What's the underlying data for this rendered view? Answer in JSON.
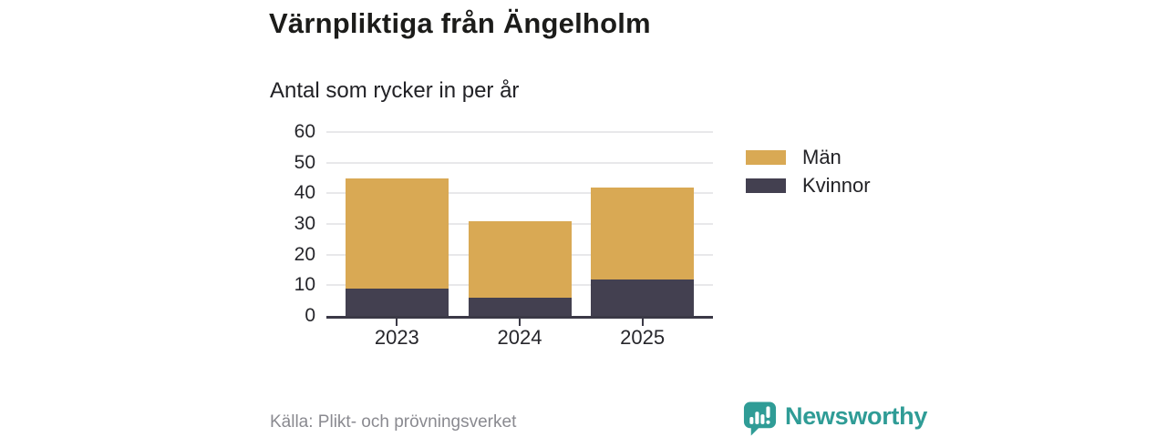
{
  "header": {
    "title": "Värnpliktiga från Ängelholm",
    "subtitle": "Antal som rycker in per år"
  },
  "chart_data": {
    "type": "bar",
    "stacked": true,
    "title": "Värnpliktiga från Ängelholm",
    "subtitle": "Antal som rycker in per år",
    "categories": [
      "2023",
      "2024",
      "2025"
    ],
    "series": [
      {
        "name": "Män",
        "color": "#d9a954",
        "values": [
          36,
          25,
          30
        ]
      },
      {
        "name": "Kvinnor",
        "color": "#434050",
        "values": [
          9,
          6,
          12
        ]
      }
    ],
    "stack_totals": [
      45,
      31,
      42
    ],
    "xlabel": "",
    "ylabel": "",
    "ylim": [
      0,
      60
    ],
    "yticks": [
      0,
      10,
      20,
      30,
      40,
      50,
      60
    ],
    "grid": true,
    "legend_position": "right"
  },
  "footer": {
    "source": "Källa: Plikt- och prövningsverket",
    "brand": "Newsworthy"
  },
  "colors": {
    "men": "#d9a954",
    "women": "#434050",
    "axis": "#3b3946",
    "grid": "#e8e8ea",
    "text": "#26262b",
    "muted": "#8a8a90",
    "brand_teal": "#2f9c96"
  },
  "icons": {
    "logo": "newsworthy-speech-bubble-bar-chart-icon"
  }
}
